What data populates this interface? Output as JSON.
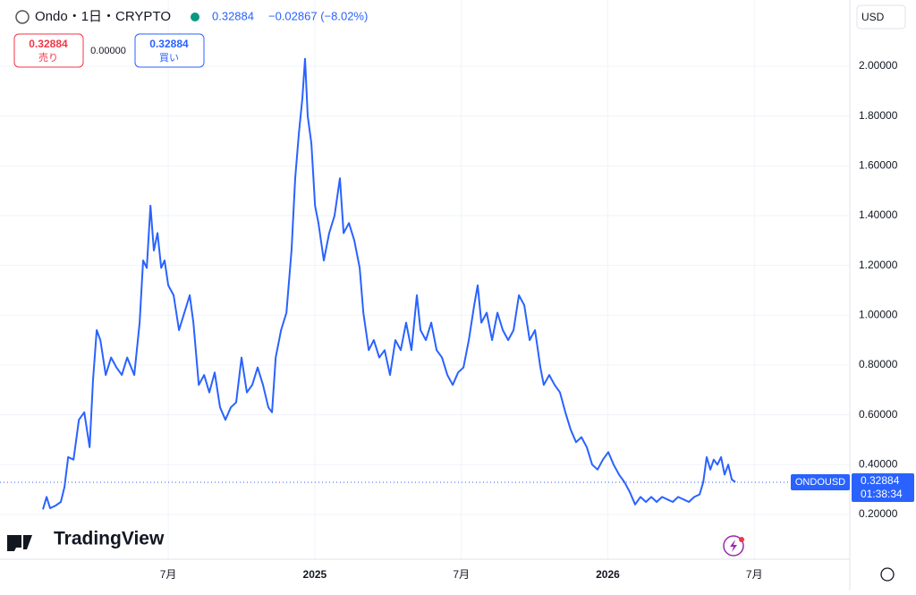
{
  "chart_data": {
    "type": "line",
    "title": "Ondo・1日・CRYPTO",
    "price": 0.32884,
    "change": "−0.02867 (−8.02%)",
    "currency": "USD",
    "x": [
      0.87,
      1.02,
      1.16,
      1.38,
      1.6,
      1.75,
      1.9,
      2.12,
      2.34,
      2.56,
      2.78,
      2.92,
      3.07,
      3.22,
      3.44,
      3.66,
      3.88,
      4.1,
      4.32,
      4.61,
      4.83,
      4.97,
      5.12,
      5.27,
      5.41,
      5.56,
      5.71,
      5.85,
      6.0,
      6.22,
      6.44,
      6.66,
      6.88,
      7.03,
      7.25,
      7.47,
      7.68,
      7.9,
      8.12,
      8.34,
      8.56,
      8.78,
      9.0,
      9.22,
      9.44,
      9.66,
      9.88,
      10.1,
      10.25,
      10.4,
      10.62,
      10.84,
      11.05,
      11.2,
      11.35,
      11.49,
      11.6,
      11.71,
      11.86,
      12.01,
      12.15,
      12.37,
      12.59,
      12.81,
      13.03,
      13.18,
      13.4,
      13.62,
      13.84,
      13.99,
      14.21,
      14.42,
      14.64,
      14.86,
      15.08,
      15.3,
      15.52,
      15.74,
      15.96,
      16.18,
      16.33,
      16.55,
      16.77,
      16.99,
      17.21,
      17.43,
      17.65,
      17.87,
      18.09,
      18.31,
      18.53,
      18.67,
      18.82,
      19.04,
      19.26,
      19.48,
      19.7,
      19.92,
      20.14,
      20.36,
      20.58,
      20.8,
      21.02,
      21.24,
      21.38,
      21.6,
      21.82,
      22.04,
      22.26,
      22.48,
      22.7,
      22.92,
      23.14,
      23.36,
      23.58,
      23.8,
      24.02,
      24.24,
      24.46,
      24.68,
      24.9,
      25.12,
      25.34,
      25.56,
      25.78,
      26.0,
      26.22,
      26.44,
      26.66,
      26.88,
      27.1,
      27.32,
      27.54,
      27.76,
      27.91,
      28.05,
      28.2,
      28.34,
      28.49,
      28.64,
      28.78,
      28.93,
      29.08,
      29.22
    ],
    "series": [
      {
        "name": "ONDOUSD",
        "color": "#2962ff",
        "values": [
          0.22,
          0.27,
          0.225,
          0.235,
          0.25,
          0.31,
          0.43,
          0.42,
          0.58,
          0.61,
          0.47,
          0.74,
          0.94,
          0.9,
          0.76,
          0.83,
          0.79,
          0.76,
          0.83,
          0.76,
          0.97,
          1.22,
          1.19,
          1.44,
          1.26,
          1.33,
          1.19,
          1.22,
          1.12,
          1.08,
          0.94,
          1.01,
          1.08,
          0.97,
          0.72,
          0.76,
          0.69,
          0.77,
          0.63,
          0.58,
          0.63,
          0.65,
          0.83,
          0.69,
          0.72,
          0.79,
          0.72,
          0.63,
          0.61,
          0.83,
          0.94,
          1.01,
          1.26,
          1.55,
          1.73,
          1.87,
          2.03,
          1.8,
          1.69,
          1.44,
          1.37,
          1.22,
          1.33,
          1.4,
          1.55,
          1.33,
          1.37,
          1.3,
          1.19,
          1.01,
          0.86,
          0.9,
          0.83,
          0.86,
          0.76,
          0.9,
          0.86,
          0.97,
          0.86,
          1.08,
          0.94,
          0.9,
          0.97,
          0.86,
          0.83,
          0.76,
          0.72,
          0.77,
          0.79,
          0.9,
          1.04,
          1.12,
          0.97,
          1.01,
          0.9,
          1.01,
          0.94,
          0.9,
          0.94,
          1.08,
          1.04,
          0.9,
          0.94,
          0.79,
          0.72,
          0.76,
          0.72,
          0.69,
          0.61,
          0.54,
          0.49,
          0.51,
          0.47,
          0.4,
          0.38,
          0.42,
          0.45,
          0.4,
          0.36,
          0.33,
          0.29,
          0.24,
          0.27,
          0.25,
          0.27,
          0.25,
          0.27,
          0.26,
          0.25,
          0.27,
          0.26,
          0.25,
          0.27,
          0.28,
          0.33,
          0.43,
          0.38,
          0.42,
          0.4,
          0.43,
          0.36,
          0.4,
          0.34,
          0.33
        ]
      }
    ],
    "xlim": [
      -0.89,
      33.91
    ],
    "ylim": [
      0.02,
      2.266
    ],
    "xticks": [
      {
        "value": 6,
        "label": "7月"
      },
      {
        "value": 12,
        "label": "2025"
      },
      {
        "value": 18,
        "label": "7月"
      },
      {
        "value": 24,
        "label": "2026"
      },
      {
        "value": 30,
        "label": "7月"
      }
    ],
    "yticks": [
      {
        "value": 0.2,
        "label": "0.20000"
      },
      {
        "value": 0.4,
        "label": "0.40000"
      },
      {
        "value": 0.6,
        "label": "0.60000"
      },
      {
        "value": 0.8,
        "label": "0.80000"
      },
      {
        "value": 1.0,
        "label": "1.00000"
      },
      {
        "value": 1.2,
        "label": "1.20000"
      },
      {
        "value": 1.4,
        "label": "1.40000"
      },
      {
        "value": 1.6,
        "label": "1.60000"
      },
      {
        "value": 1.8,
        "label": "1.80000"
      },
      {
        "value": 2.0,
        "label": "2.00000"
      }
    ],
    "grid": true,
    "price_tag": {
      "time": "01:38:34"
    }
  },
  "trade_panel": {
    "sell_price": 0.32884,
    "sell_label": "売り",
    "spread": "0.00000",
    "buy_price": 0.32884,
    "buy_label": "買い"
  },
  "logo": "TradingView"
}
